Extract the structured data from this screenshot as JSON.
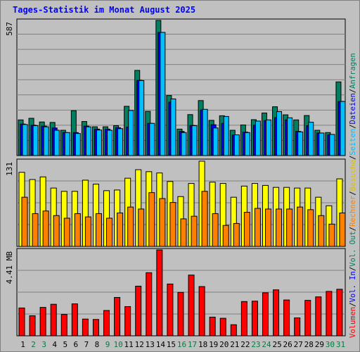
{
  "title": "Tages-Statistik im Monat August 2025",
  "colors": {
    "background": "#c0c0c0",
    "grid": "#808080",
    "title": "#0000ff",
    "anfragen": "#008060",
    "dateien": "#0000ff",
    "seiten": "#00c0ff",
    "besuche": "#ffff00",
    "rechner": "#ff8000",
    "volumen": "#ff0000",
    "weekend_label": "#008040",
    "weekday_label": "#000000"
  },
  "chart_data": [
    {
      "type": "bar",
      "name": "hits-panel",
      "ymax_label": "587",
      "ylim": [
        0,
        587
      ],
      "categories": [
        "1",
        "2",
        "3",
        "4",
        "5",
        "6",
        "7",
        "8",
        "9",
        "10",
        "11",
        "12",
        "13",
        "14",
        "15",
        "16",
        "17",
        "18",
        "19",
        "20",
        "21",
        "22",
        "23",
        "24",
        "25",
        "26",
        "27",
        "28",
        "29",
        "30",
        "31"
      ],
      "weekend": [
        2,
        3,
        9,
        10,
        16,
        17,
        23,
        24,
        30,
        31
      ],
      "legend": [
        {
          "label": "Anfragen",
          "color": "#008060"
        },
        {
          "label": "Dateien",
          "color": "#0000ff"
        },
        {
          "label": "Seiten",
          "color": "#00c0ff"
        }
      ],
      "separators": [
        "/",
        "/"
      ],
      "series": [
        {
          "name": "Anfragen",
          "values": [
            155,
            162,
            146,
            144,
            110,
            195,
            148,
            125,
            125,
            130,
            214,
            370,
            192,
            587,
            261,
            115,
            178,
            239,
            153,
            173,
            110,
            133,
            156,
            185,
            212,
            177,
            155,
            174,
            110,
            100,
            320
          ]
        },
        {
          "name": "Dateien",
          "values": [
            137,
            132,
            128,
            120,
            100,
            100,
            128,
            115,
            115,
            121,
            124,
            327,
            140,
            535,
            232,
            105,
            131,
            198,
            134,
            140,
            90,
            102,
            132,
            152,
            165,
            155,
            105,
            130,
            98,
            90,
            235
          ]
        },
        {
          "name": "Seiten",
          "values": [
            135,
            130,
            125,
            110,
            100,
            96,
            125,
            111,
            110,
            117,
            196,
            326,
            140,
            535,
            246,
            100,
            130,
            201,
            120,
            170,
            90,
            100,
            150,
            155,
            191,
            164,
            103,
            145,
            98,
            92,
            235
          ]
        }
      ]
    },
    {
      "type": "bar",
      "name": "visits-panel",
      "ymax_label": "131",
      "ylim": [
        0,
        131
      ],
      "legend": [
        {
          "label": "Besuche",
          "color": "#ffff00"
        },
        {
          "label": "Rechner",
          "color": "#ff8000"
        }
      ],
      "series": [
        {
          "name": "Besuche",
          "values": [
            113,
            102,
            106,
            89,
            84,
            84,
            101,
            95,
            85,
            86,
            104,
            117,
            114,
            112,
            99,
            76,
            96,
            130,
            98,
            96,
            75,
            92,
            96,
            93,
            90,
            90,
            89,
            89,
            75,
            62,
            103
          ]
        },
        {
          "name": "Rechner",
          "values": [
            75,
            50,
            54,
            47,
            43,
            50,
            45,
            50,
            43,
            51,
            60,
            57,
            82,
            73,
            67,
            42,
            46,
            84,
            50,
            32,
            35,
            52,
            58,
            57,
            57,
            57,
            60,
            56,
            47,
            34,
            51
          ]
        }
      ]
    },
    {
      "type": "bar",
      "name": "volume-panel",
      "ymax_label": "4.41 MB",
      "ylim": [
        0,
        4.41
      ],
      "legend": [
        {
          "label": "Volumen",
          "color": "#ff0000"
        }
      ],
      "series": [
        {
          "name": "Volumen",
          "values": [
            1.43,
            1.03,
            1.46,
            1.62,
            1.1,
            1.64,
            0.86,
            0.84,
            1.3,
            1.97,
            1.5,
            2.55,
            3.24,
            4.41,
            2.66,
            2.23,
            3.12,
            2.53,
            0.96,
            0.9,
            0.57,
            1.76,
            1.78,
            2.21,
            2.36,
            1.84,
            0.92,
            1.82,
            2.0,
            2.28,
            2.39
          ]
        }
      ],
      "legend_tail": [
        "Vol. In",
        "Vol. Out",
        "Rechner",
        "Besuche",
        "Seiten",
        "Dateien",
        "Anfragen"
      ]
    }
  ],
  "right_legend": [
    {
      "label": "Volumen",
      "color": "#ff0000"
    },
    {
      "label": "/",
      "color": "#000000"
    },
    {
      "label": "Vol. In",
      "color": "#0000ff"
    },
    {
      "label": "/",
      "color": "#000000"
    },
    {
      "label": "Vol. Out",
      "color": "#008060"
    },
    {
      "label": "/",
      "color": "#000000"
    },
    {
      "label": "Rechner",
      "color": "#ff8000"
    },
    {
      "label": "/",
      "color": "#000000"
    },
    {
      "label": "Besuche",
      "color": "#e0c000"
    },
    {
      "label": "/",
      "color": "#000000"
    },
    {
      "label": "Seiten",
      "color": "#00c0ff"
    },
    {
      "label": "/",
      "color": "#000000"
    },
    {
      "label": "Dateien",
      "color": "#0000ff"
    },
    {
      "label": "/",
      "color": "#000000"
    },
    {
      "label": "Anfragen",
      "color": "#008060"
    }
  ]
}
